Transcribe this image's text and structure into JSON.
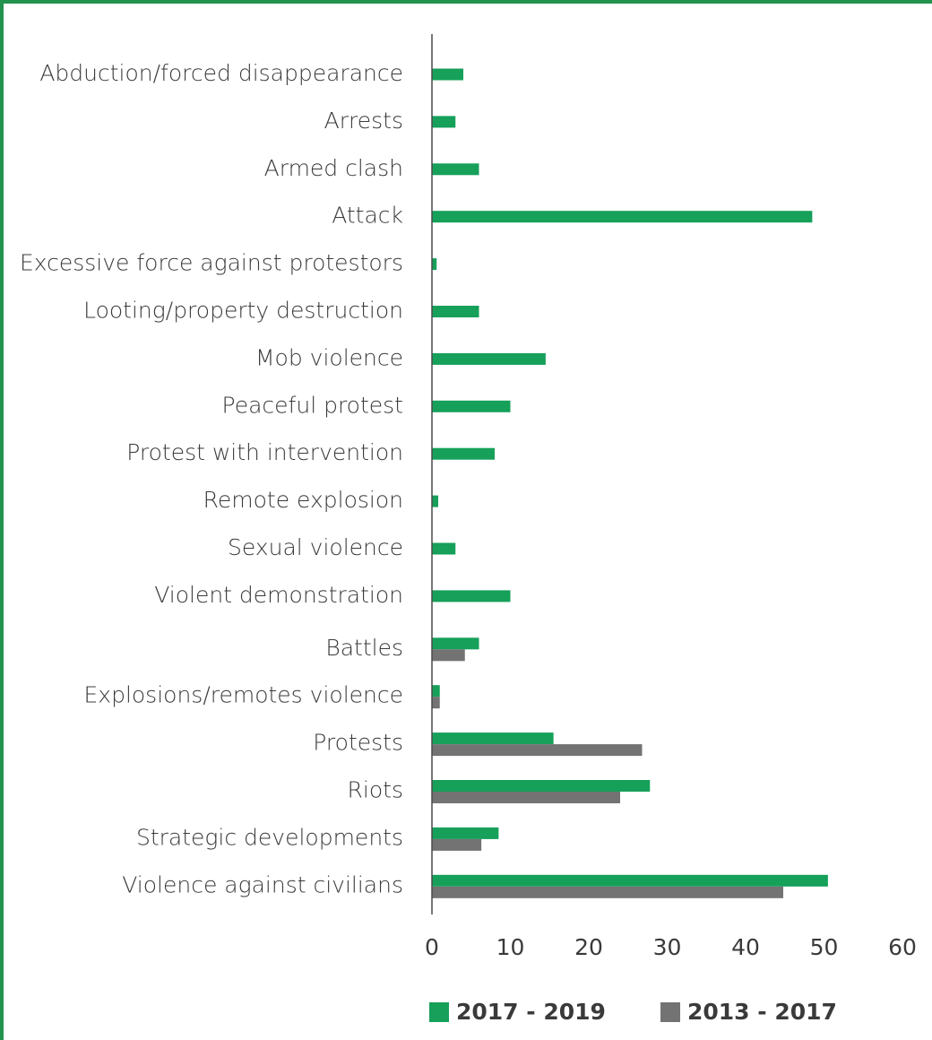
{
  "chart_data": {
    "type": "bar",
    "orientation": "horizontal",
    "categories": [
      "Abduction/forced disappearance",
      "Arrests",
      "Armed clash",
      "Attack",
      "Excessive force against protestors",
      "Looting/property destruction",
      "Mob violence",
      "Peaceful protest",
      "Protest with intervention",
      "Remote explosion",
      "Sexual violence",
      "Violent demonstration",
      "Battles",
      "Explosions/remotes violence",
      "Protests",
      "Riots",
      "Strategic developments",
      "Violence against civilians"
    ],
    "series": [
      {
        "name": "2017 - 2019",
        "color": "#16a05a",
        "values": [
          4,
          3,
          6,
          48.5,
          0.6,
          6,
          14.5,
          10,
          8,
          0.8,
          3,
          10,
          6,
          1,
          15.5,
          27.8,
          8.5,
          50.5
        ]
      },
      {
        "name": "2013 - 2017",
        "color": "#737373",
        "values": [
          null,
          null,
          null,
          null,
          null,
          null,
          null,
          null,
          null,
          null,
          null,
          null,
          4.2,
          1,
          26.8,
          24,
          6.3,
          44.8
        ]
      }
    ],
    "xlim": [
      0,
      60
    ],
    "xticks": [
      "0",
      "10",
      "20",
      "30",
      "40",
      "50",
      "60"
    ],
    "grid": false,
    "legend_position": "bottom"
  },
  "legend": {
    "items": [
      {
        "label": "2017 - 2019",
        "color": "#16a05a"
      },
      {
        "label": "2013 - 2017",
        "color": "#737373"
      }
    ]
  }
}
